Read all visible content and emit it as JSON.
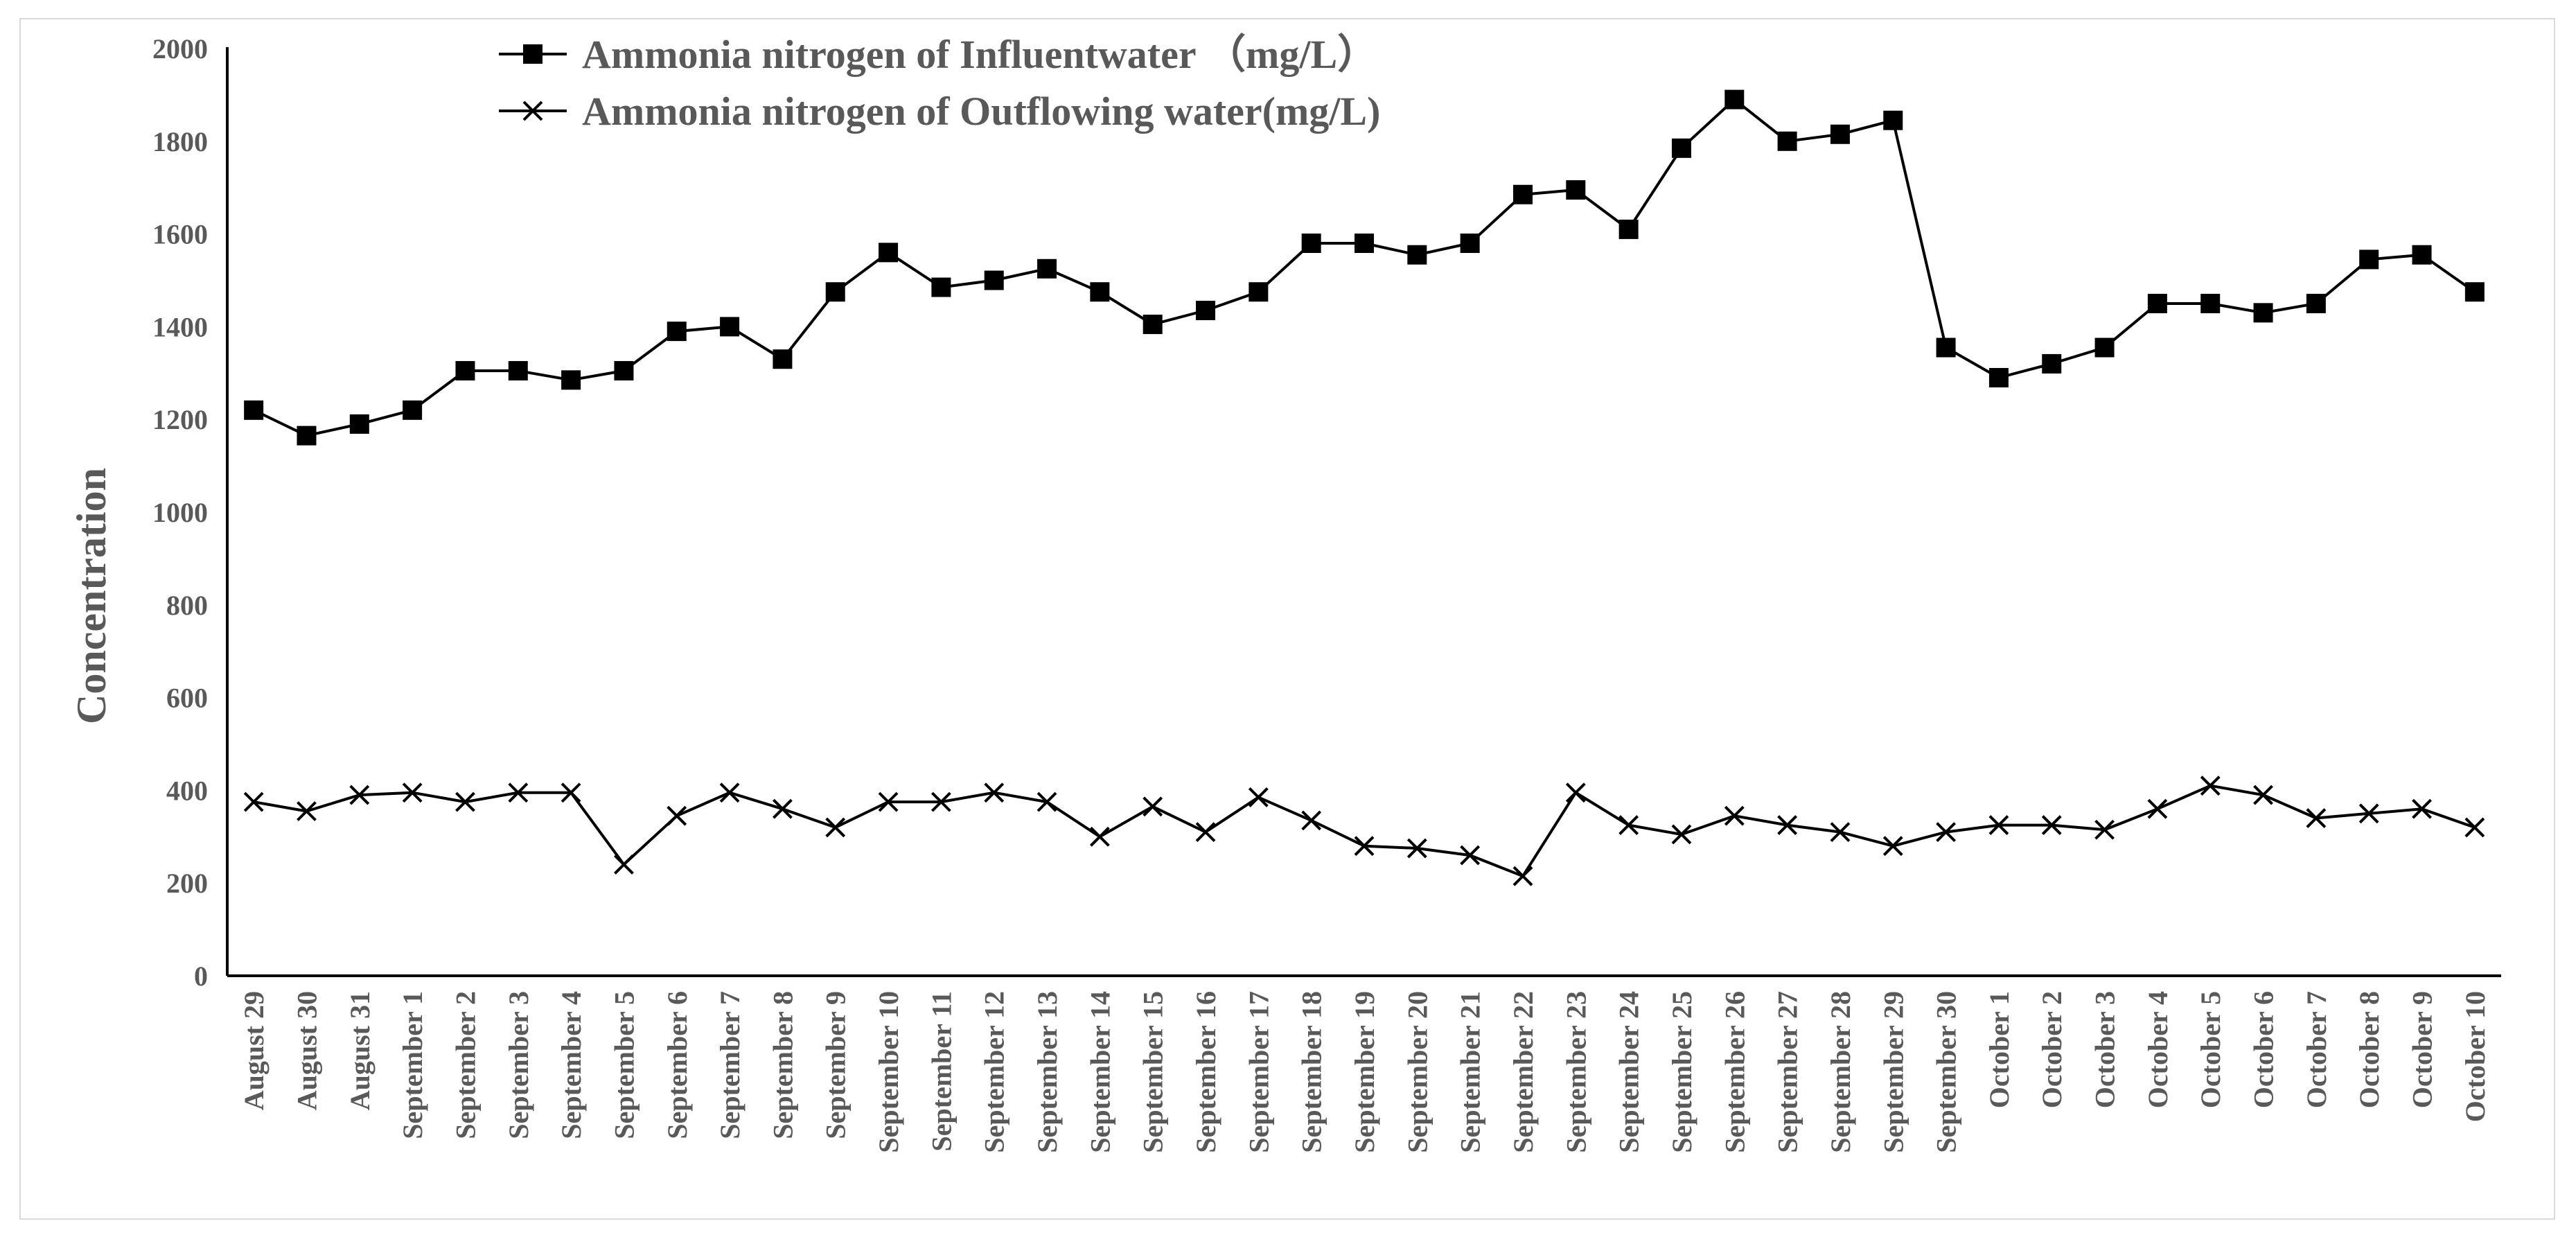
{
  "chart_data": {
    "type": "line",
    "title": "",
    "xlabel": "",
    "ylabel": "Concentration",
    "ylim": [
      0,
      2000
    ],
    "yticks": [
      "0",
      "200",
      "400",
      "600",
      "800",
      "1000",
      "1200",
      "1400",
      "1600",
      "1800",
      "2000"
    ],
    "grid": false,
    "legend_position": "top-left",
    "categories": [
      "August 29",
      "August 30",
      "August 31",
      "September 1",
      "September 2",
      "September 3",
      "September 4",
      "September 5",
      "September 6",
      "September 7",
      "September 8",
      "September 9",
      "September 10",
      "September 11",
      "September 12",
      "September 13",
      "September 14",
      "September 15",
      "September 16",
      "September 17",
      "September 18",
      "September 19",
      "September 20",
      "September 21",
      "September 22",
      "September 23",
      "September 24",
      "September 25",
      "September 26",
      "September 27",
      "September 28",
      "September 29",
      "September 30",
      "October 1",
      "October 2",
      "October 3",
      "October 4",
      "October 5",
      "October 6",
      "October 7",
      "October 8",
      "October 9",
      "October 10"
    ],
    "series": [
      {
        "name": "Ammonia nitrogen of Influentwater （mg/L）",
        "marker": "square",
        "color": "#000000",
        "values": [
          1220,
          1165,
          1190,
          1220,
          1305,
          1305,
          1285,
          1305,
          1390,
          1400,
          1330,
          1475,
          1560,
          1485,
          1500,
          1525,
          1475,
          1405,
          1435,
          1475,
          1580,
          1580,
          1555,
          1580,
          1685,
          1695,
          1610,
          1785,
          1890,
          1800,
          1815,
          1845,
          1355,
          1290,
          1320,
          1355,
          1450,
          1450,
          1430,
          1450,
          1545,
          1555,
          1475
        ]
      },
      {
        "name": "Ammonia nitrogen of Outflowing water(mg/L)",
        "marker": "x",
        "color": "#000000",
        "values": [
          375,
          355,
          390,
          395,
          375,
          395,
          395,
          240,
          345,
          395,
          360,
          320,
          375,
          375,
          395,
          375,
          300,
          365,
          310,
          385,
          335,
          280,
          275,
          260,
          215,
          395,
          325,
          305,
          345,
          325,
          310,
          280,
          310,
          325,
          325,
          315,
          360,
          410,
          390,
          340,
          350,
          360,
          320
        ]
      }
    ]
  }
}
